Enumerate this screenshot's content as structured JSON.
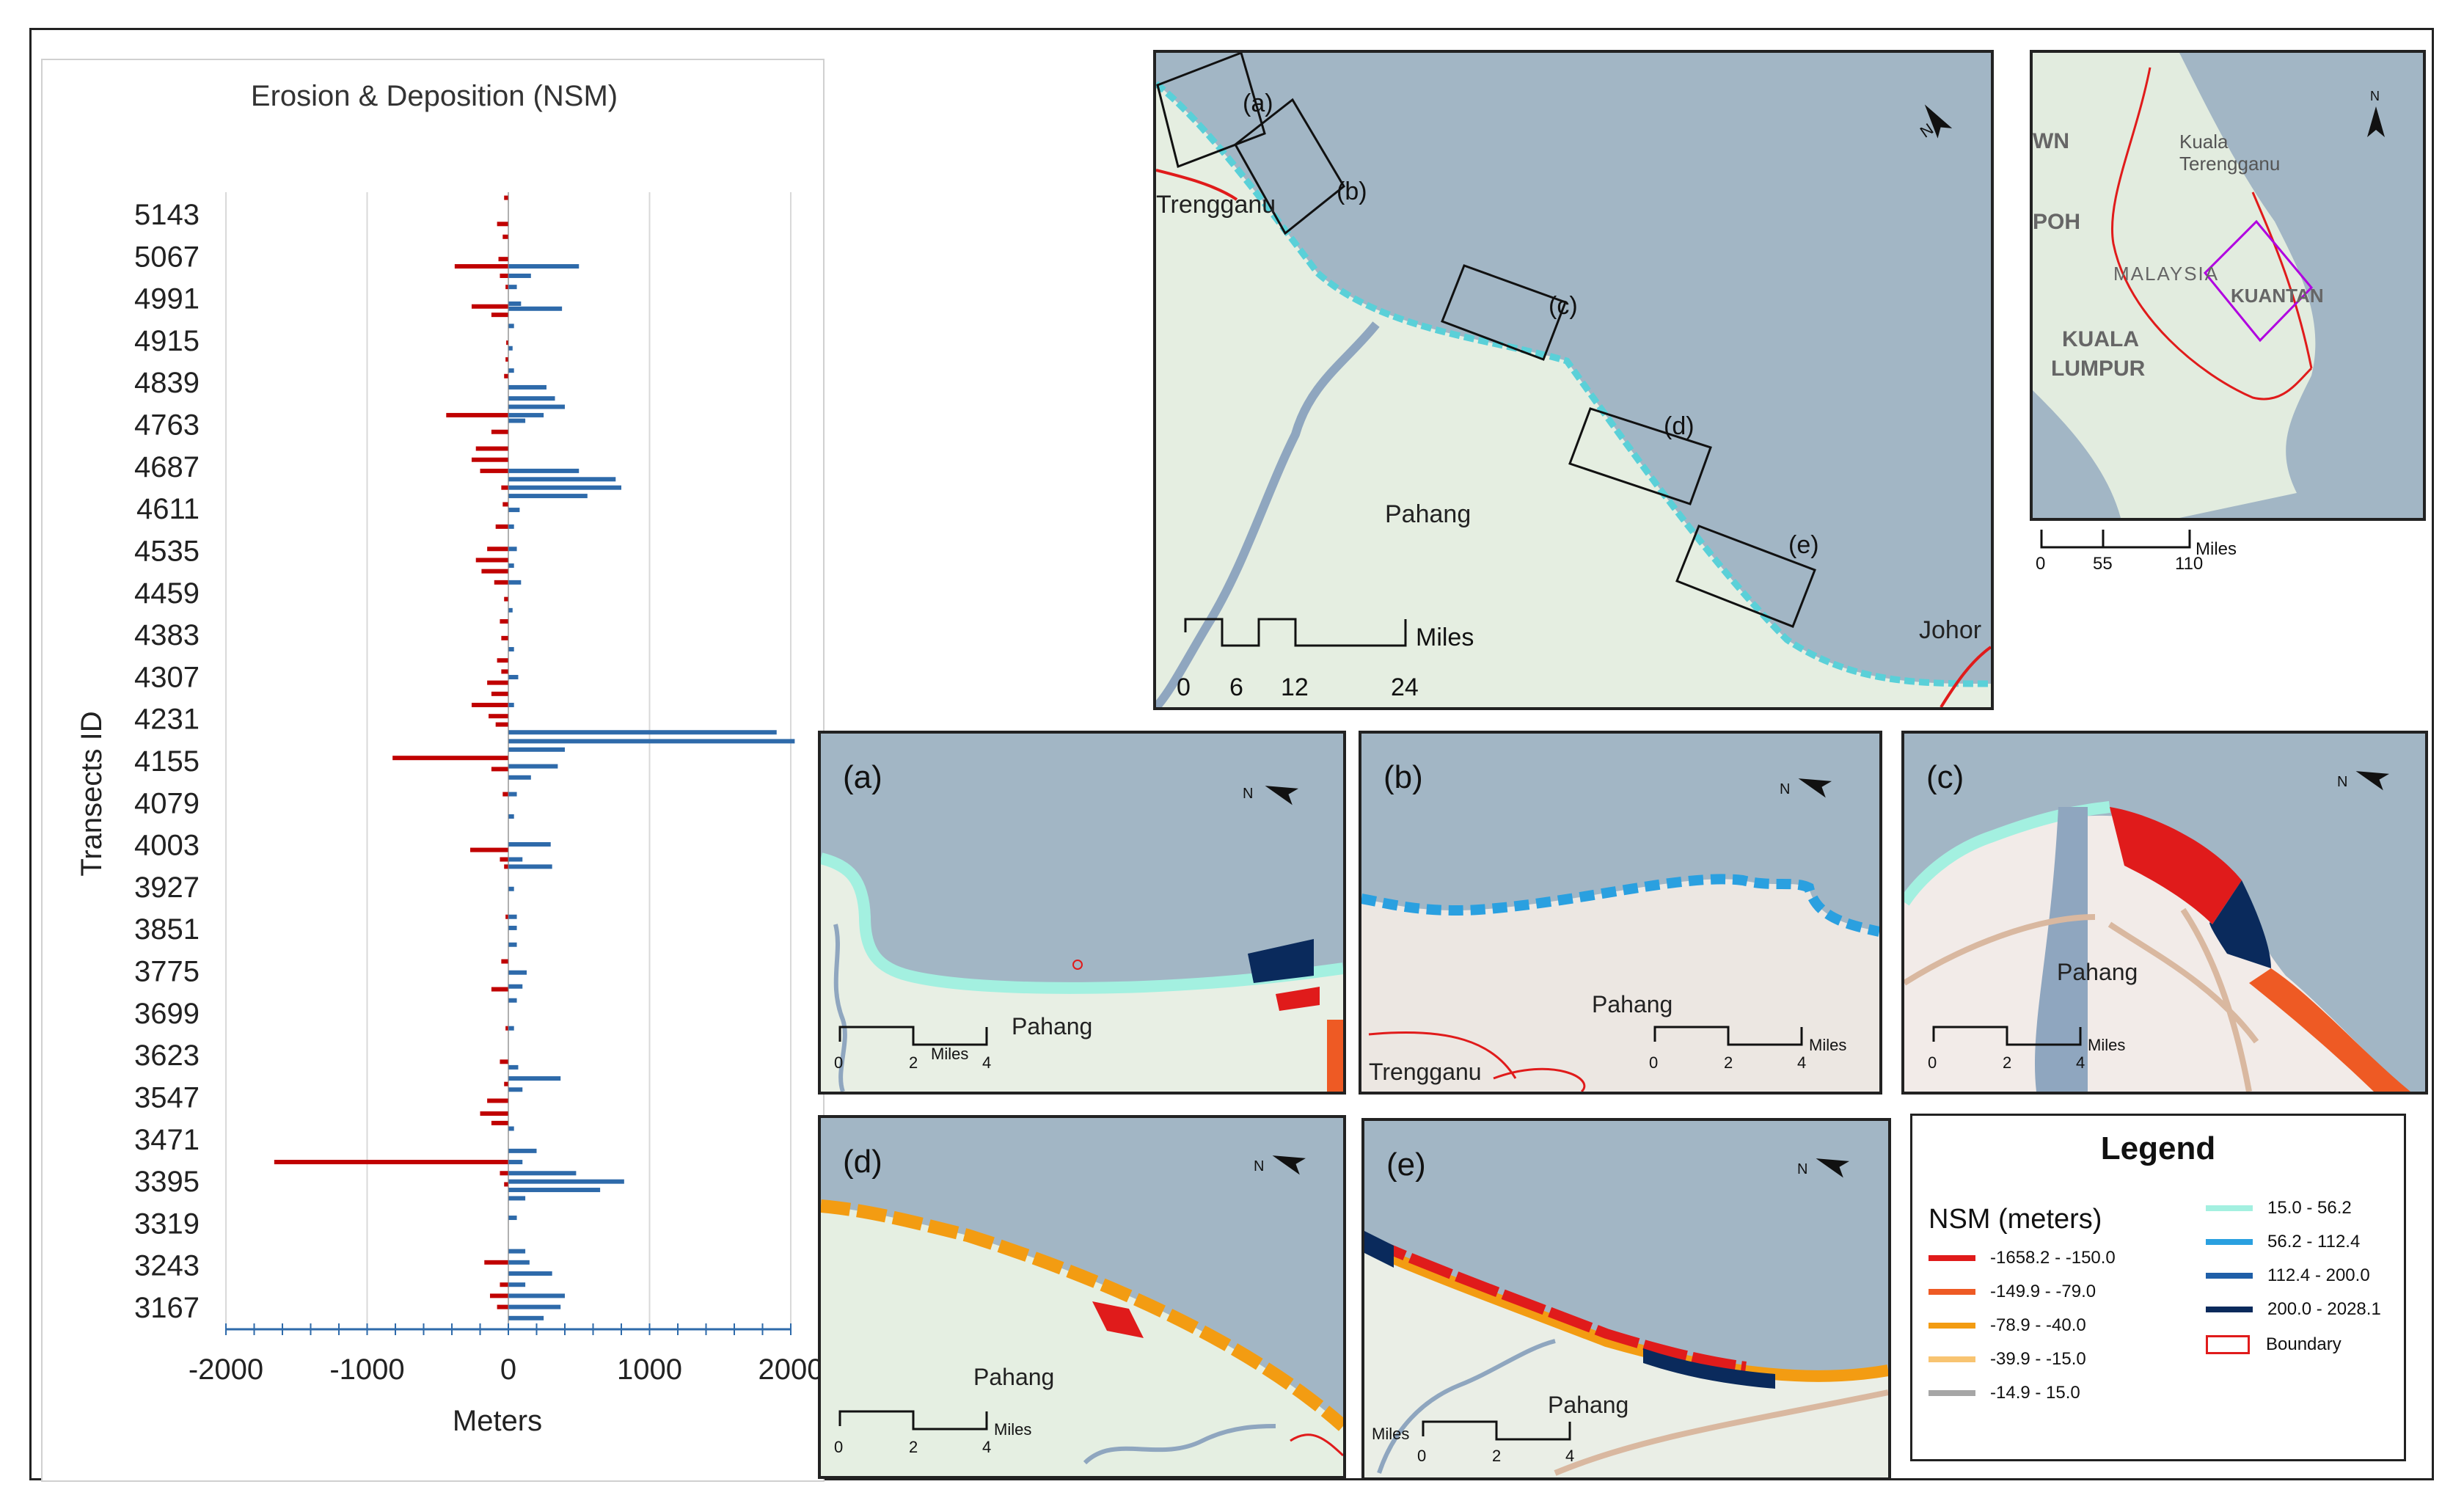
{
  "chart_data": {
    "type": "bar",
    "orientation": "horizontal",
    "title": "Erosion & Deposition (NSM)",
    "xlabel": "Meters",
    "ylabel": "Transects ID",
    "xlim": [
      -2000,
      2000
    ],
    "xticks": [
      "-2000",
      "-1000",
      "0",
      "1000",
      "2000"
    ],
    "yticks": [
      "5143",
      "5067",
      "4991",
      "4915",
      "4839",
      "4763",
      "4687",
      "4611",
      "4535",
      "4459",
      "4383",
      "4307",
      "4231",
      "4155",
      "4079",
      "4003",
      "3927",
      "3851",
      "3775",
      "3699",
      "3623",
      "3547",
      "3471",
      "3395",
      "3319",
      "3243",
      "3167"
    ],
    "grid": "vertical",
    "series": [
      {
        "color": "#c00000",
        "bars": [
          [
            5190,
            -30
          ],
          [
            5143,
            -80
          ],
          [
            5120,
            -40
          ],
          [
            5080,
            -70
          ],
          [
            5067,
            -380
          ],
          [
            5050,
            -60
          ],
          [
            5030,
            -20
          ],
          [
            4995,
            -260
          ],
          [
            4980,
            -120
          ],
          [
            4930,
            -15
          ],
          [
            4900,
            -20
          ],
          [
            4870,
            -30
          ],
          [
            4800,
            -440
          ],
          [
            4770,
            -120
          ],
          [
            4740,
            -230
          ],
          [
            4720,
            -260
          ],
          [
            4700,
            -200
          ],
          [
            4670,
            -50
          ],
          [
            4640,
            -40
          ],
          [
            4600,
            -90
          ],
          [
            4560,
            -150
          ],
          [
            4540,
            -230
          ],
          [
            4520,
            -190
          ],
          [
            4500,
            -100
          ],
          [
            4470,
            -30
          ],
          [
            4430,
            -60
          ],
          [
            4400,
            -50
          ],
          [
            4360,
            -80
          ],
          [
            4340,
            -50
          ],
          [
            4320,
            -150
          ],
          [
            4300,
            -120
          ],
          [
            4280,
            -260
          ],
          [
            4260,
            -140
          ],
          [
            4245,
            -90
          ],
          [
            4185,
            -820
          ],
          [
            4165,
            -120
          ],
          [
            4120,
            -40
          ],
          [
            4020,
            -270
          ],
          [
            4003,
            -60
          ],
          [
            3990,
            -30
          ],
          [
            3900,
            -20
          ],
          [
            3820,
            -50
          ],
          [
            3770,
            -120
          ],
          [
            3700,
            -20
          ],
          [
            3640,
            -60
          ],
          [
            3600,
            -30
          ],
          [
            3570,
            -150
          ],
          [
            3547,
            -200
          ],
          [
            3530,
            -120
          ],
          [
            3460,
            -1658
          ],
          [
            3440,
            -60
          ],
          [
            3420,
            -30
          ],
          [
            3280,
            -170
          ],
          [
            3240,
            -60
          ],
          [
            3220,
            -130
          ],
          [
            3200,
            -80
          ]
        ]
      },
      {
        "color": "#2e6aaa",
        "bars": [
          [
            5067,
            500
          ],
          [
            5050,
            160
          ],
          [
            5030,
            60
          ],
          [
            5000,
            90
          ],
          [
            4991,
            380
          ],
          [
            4960,
            40
          ],
          [
            4920,
            30
          ],
          [
            4880,
            40
          ],
          [
            4850,
            270
          ],
          [
            4830,
            330
          ],
          [
            4815,
            400
          ],
          [
            4800,
            250
          ],
          [
            4790,
            120
          ],
          [
            4700,
            500
          ],
          [
            4685,
            760
          ],
          [
            4670,
            800
          ],
          [
            4655,
            560
          ],
          [
            4630,
            80
          ],
          [
            4600,
            40
          ],
          [
            4560,
            60
          ],
          [
            4530,
            40
          ],
          [
            4500,
            90
          ],
          [
            4450,
            30
          ],
          [
            4380,
            40
          ],
          [
            4330,
            70
          ],
          [
            4280,
            40
          ],
          [
            4231,
            1900
          ],
          [
            4215,
            2028
          ],
          [
            4200,
            400
          ],
          [
            4170,
            350
          ],
          [
            4150,
            160
          ],
          [
            4120,
            60
          ],
          [
            4080,
            40
          ],
          [
            4030,
            300
          ],
          [
            4003,
            100
          ],
          [
            3990,
            310
          ],
          [
            3950,
            40
          ],
          [
            3900,
            60
          ],
          [
            3880,
            60
          ],
          [
            3850,
            60
          ],
          [
            3800,
            130
          ],
          [
            3775,
            100
          ],
          [
            3750,
            60
          ],
          [
            3700,
            40
          ],
          [
            3630,
            70
          ],
          [
            3610,
            370
          ],
          [
            3590,
            100
          ],
          [
            3520,
            40
          ],
          [
            3480,
            200
          ],
          [
            3460,
            100
          ],
          [
            3440,
            480
          ],
          [
            3425,
            820
          ],
          [
            3410,
            650
          ],
          [
            3395,
            120
          ],
          [
            3360,
            60
          ],
          [
            3300,
            120
          ],
          [
            3280,
            150
          ],
          [
            3260,
            310
          ],
          [
            3240,
            120
          ],
          [
            3220,
            400
          ],
          [
            3200,
            370
          ],
          [
            3180,
            250
          ]
        ]
      }
    ]
  },
  "maps": {
    "main": {
      "labels": {
        "a": "(a)",
        "b": "(b)",
        "c": "(c)",
        "d": "(d)",
        "e": "(e)",
        "trengganu": "Trengganu",
        "pahang": "Pahang",
        "johor": "Johor"
      },
      "scale": {
        "t0": "0",
        "t1": "6",
        "t2": "12",
        "t3": "24",
        "unit": "Miles"
      }
    },
    "inset": {
      "labels": {
        "wn": "WN",
        "poh": "POH",
        "kuala_terengganu_1": "Kuala",
        "kuala_terengganu_2": "Terengganu",
        "malaysia": "MALAYSIA",
        "kuantan": "KUANTAN",
        "kuala_lumpur_1": "KUALA",
        "kuala_lumpur_2": "LUMPUR",
        "north": "N"
      },
      "scale": {
        "t0": "0",
        "t1": "55",
        "t2": "110",
        "unit": "Miles"
      }
    },
    "a": {
      "tag": "(a)",
      "place": "Pahang",
      "scale": {
        "t0": "0",
        "t1": "2",
        "t2": "4",
        "unit": "Miles"
      }
    },
    "b": {
      "tag": "(b)",
      "place": "Pahang",
      "place2": "Trengganu",
      "scale": {
        "t0": "0",
        "t1": "2",
        "t2": "4",
        "unit": "Miles"
      }
    },
    "c": {
      "tag": "(c)",
      "place": "Pahang",
      "scale": {
        "t0": "0",
        "t1": "2",
        "t2": "4",
        "unit": "Miles"
      }
    },
    "d": {
      "tag": "(d)",
      "place": "Pahang",
      "scale": {
        "t0": "0",
        "t1": "2",
        "t2": "4",
        "unit": "Miles"
      }
    },
    "e": {
      "tag": "(e)",
      "place": "Pahang",
      "scale": {
        "t0": "0",
        "t1": "2",
        "t2": "4",
        "unit": "Miles"
      }
    },
    "north_letter": "N"
  },
  "legend": {
    "title": "Legend",
    "subtitle": "NSM (meters)",
    "items_left": [
      {
        "label": "-1658.2 - -150.0",
        "color": "#e01b1b"
      },
      {
        "label": "-149.9 - -79.0",
        "color": "#ee5a24"
      },
      {
        "label": "-78.9 - -40.0",
        "color": "#f39c12"
      },
      {
        "label": "-39.9 - -15.0",
        "color": "#f8c471"
      },
      {
        "label": "-14.9 - 15.0",
        "color": "#a6a6a6"
      }
    ],
    "items_right": [
      {
        "label": "15.0 - 56.2",
        "color": "#a3f0e0"
      },
      {
        "label": "56.2 - 112.4",
        "color": "#2aa0e0"
      },
      {
        "label": "112.4 - 200.0",
        "color": "#1f5fa8"
      },
      {
        "label": "200.0 - 2028.1",
        "color": "#0a2a5c"
      }
    ],
    "boundary": "Boundary"
  }
}
